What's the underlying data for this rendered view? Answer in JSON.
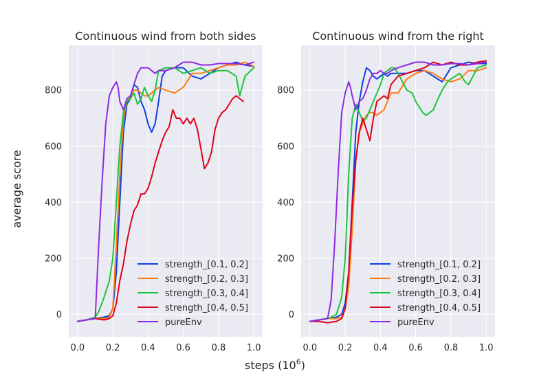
{
  "ylabel": "average score",
  "xlabel_base": "steps (10",
  "xlabel_exp": "6",
  "xlabel_close": ")",
  "colors": {
    "strength_[0.1, 0.2]": "#0a3fe8",
    "strength_[0.2, 0.3]": "#ff7b0e",
    "strength_[0.3, 0.4]": "#1cc43a",
    "strength_[0.4, 0.5]": "#e0001a",
    "pureEnv": "#8b2be2"
  },
  "chart_data": [
    {
      "type": "line",
      "title": "Continuous wind from both sides",
      "xlim": [
        -0.05,
        1.05
      ],
      "ylim": [
        -80,
        960
      ],
      "xticks": [
        0.0,
        0.2,
        0.4,
        0.6,
        0.8,
        1.0
      ],
      "xtick_labels": [
        "0.0",
        "0.2",
        "0.4",
        "0.6",
        "0.8",
        "1.0"
      ],
      "yticks": [
        0,
        200,
        400,
        600,
        800
      ],
      "ytick_labels": [
        "0",
        "200",
        "400",
        "600",
        "800"
      ],
      "legend_loc": "lower-right",
      "series": [
        {
          "name": "strength_[0.1, 0.2]",
          "x": [
            0.0,
            0.05,
            0.1,
            0.15,
            0.18,
            0.2,
            0.22,
            0.24,
            0.26,
            0.28,
            0.3,
            0.32,
            0.34,
            0.36,
            0.38,
            0.4,
            0.42,
            0.44,
            0.46,
            0.48,
            0.5,
            0.55,
            0.6,
            0.65,
            0.7,
            0.75,
            0.8,
            0.85,
            0.9,
            0.95,
            1.0
          ],
          "y": [
            -25,
            -20,
            -15,
            -10,
            -5,
            20,
            150,
            400,
            650,
            750,
            770,
            820,
            810,
            760,
            730,
            680,
            650,
            680,
            760,
            850,
            870,
            880,
            880,
            850,
            840,
            860,
            880,
            890,
            900,
            890,
            885
          ]
        },
        {
          "name": "strength_[0.2, 0.3]",
          "x": [
            0.0,
            0.05,
            0.1,
            0.15,
            0.18,
            0.2,
            0.22,
            0.24,
            0.26,
            0.28,
            0.3,
            0.32,
            0.34,
            0.36,
            0.38,
            0.4,
            0.42,
            0.44,
            0.46,
            0.5,
            0.55,
            0.6,
            0.65,
            0.7,
            0.75,
            0.8,
            0.85,
            0.9,
            0.95,
            1.0
          ],
          "y": [
            -25,
            -20,
            -15,
            -15,
            -10,
            20,
            250,
            500,
            700,
            760,
            780,
            800,
            800,
            790,
            780,
            780,
            790,
            800,
            810,
            800,
            790,
            810,
            860,
            860,
            870,
            880,
            890,
            890,
            900,
            885
          ]
        },
        {
          "name": "strength_[0.3, 0.4]",
          "x": [
            0.0,
            0.05,
            0.1,
            0.12,
            0.15,
            0.18,
            0.2,
            0.22,
            0.24,
            0.26,
            0.28,
            0.3,
            0.32,
            0.34,
            0.36,
            0.38,
            0.4,
            0.42,
            0.44,
            0.46,
            0.5,
            0.55,
            0.6,
            0.65,
            0.7,
            0.75,
            0.8,
            0.85,
            0.9,
            0.92,
            0.95,
            1.0
          ],
          "y": [
            -25,
            -20,
            -10,
            10,
            60,
            120,
            200,
            400,
            600,
            720,
            760,
            770,
            790,
            750,
            770,
            810,
            780,
            760,
            800,
            870,
            880,
            880,
            860,
            870,
            880,
            860,
            870,
            870,
            850,
            780,
            850,
            880
          ]
        },
        {
          "name": "strength_[0.4, 0.5]",
          "x": [
            0.0,
            0.05,
            0.1,
            0.15,
            0.18,
            0.2,
            0.22,
            0.24,
            0.26,
            0.28,
            0.3,
            0.32,
            0.34,
            0.36,
            0.38,
            0.4,
            0.42,
            0.44,
            0.46,
            0.48,
            0.5,
            0.52,
            0.54,
            0.56,
            0.58,
            0.6,
            0.62,
            0.64,
            0.66,
            0.68,
            0.7,
            0.72,
            0.74,
            0.76,
            0.78,
            0.8,
            0.82,
            0.84,
            0.86,
            0.88,
            0.9,
            0.92,
            0.94
          ],
          "y": [
            -25,
            -20,
            -15,
            -20,
            -15,
            -5,
            40,
            120,
            180,
            260,
            320,
            370,
            390,
            430,
            430,
            450,
            490,
            540,
            580,
            620,
            650,
            670,
            730,
            700,
            700,
            680,
            700,
            680,
            700,
            660,
            590,
            520,
            540,
            580,
            660,
            700,
            720,
            730,
            750,
            770,
            780,
            770,
            760
          ]
        },
        {
          "name": "pureEnv",
          "x": [
            0.0,
            0.05,
            0.1,
            0.12,
            0.14,
            0.16,
            0.18,
            0.2,
            0.22,
            0.23,
            0.24,
            0.26,
            0.28,
            0.3,
            0.32,
            0.34,
            0.36,
            0.38,
            0.4,
            0.42,
            0.44,
            0.46,
            0.5,
            0.55,
            0.6,
            0.65,
            0.7,
            0.75,
            0.8,
            0.85,
            0.9,
            0.95,
            1.0
          ],
          "y": [
            -25,
            -20,
            -15,
            250,
            480,
            680,
            780,
            810,
            830,
            810,
            760,
            730,
            770,
            780,
            820,
            860,
            880,
            880,
            880,
            870,
            860,
            870,
            870,
            880,
            900,
            900,
            890,
            890,
            895,
            895,
            895,
            890,
            900
          ]
        }
      ]
    },
    {
      "type": "line",
      "title": "Continuous wind from the right",
      "xlim": [
        -0.05,
        1.05
      ],
      "ylim": [
        -80,
        960
      ],
      "xticks": [
        0.0,
        0.2,
        0.4,
        0.6,
        0.8,
        1.0
      ],
      "xtick_labels": [
        "0.0",
        "0.2",
        "0.4",
        "0.6",
        "0.8",
        "1.0"
      ],
      "yticks": [
        0,
        200,
        400,
        600,
        800
      ],
      "ytick_labels": [
        "0",
        "200",
        "400",
        "600",
        "800"
      ],
      "legend_loc": "lower-right",
      "series": [
        {
          "name": "strength_[0.1, 0.2]",
          "x": [
            0.0,
            0.05,
            0.1,
            0.15,
            0.18,
            0.2,
            0.22,
            0.24,
            0.26,
            0.28,
            0.3,
            0.32,
            0.34,
            0.36,
            0.38,
            0.4,
            0.42,
            0.44,
            0.46,
            0.5,
            0.55,
            0.6,
            0.65,
            0.7,
            0.75,
            0.8,
            0.85,
            0.9,
            0.95,
            1.0
          ],
          "y": [
            -25,
            -20,
            -15,
            -10,
            0,
            40,
            150,
            400,
            650,
            760,
            830,
            880,
            870,
            850,
            840,
            850,
            860,
            850,
            860,
            860,
            860,
            870,
            870,
            850,
            830,
            880,
            890,
            900,
            895,
            895
          ]
        },
        {
          "name": "strength_[0.2, 0.3]",
          "x": [
            0.0,
            0.05,
            0.1,
            0.15,
            0.18,
            0.2,
            0.22,
            0.24,
            0.26,
            0.28,
            0.3,
            0.32,
            0.34,
            0.36,
            0.38,
            0.4,
            0.42,
            0.44,
            0.46,
            0.5,
            0.55,
            0.6,
            0.65,
            0.7,
            0.75,
            0.8,
            0.85,
            0.9,
            0.95,
            1.0
          ],
          "y": [
            -25,
            -20,
            -15,
            -15,
            -10,
            20,
            100,
            300,
            550,
            650,
            680,
            710,
            720,
            720,
            710,
            720,
            730,
            760,
            790,
            790,
            840,
            860,
            870,
            860,
            840,
            830,
            840,
            870,
            870,
            880
          ]
        },
        {
          "name": "strength_[0.3, 0.4]",
          "x": [
            0.0,
            0.05,
            0.1,
            0.12,
            0.15,
            0.18,
            0.2,
            0.22,
            0.24,
            0.26,
            0.28,
            0.3,
            0.32,
            0.34,
            0.36,
            0.38,
            0.4,
            0.42,
            0.44,
            0.46,
            0.48,
            0.5,
            0.55,
            0.58,
            0.6,
            0.62,
            0.64,
            0.66,
            0.68,
            0.7,
            0.72,
            0.75,
            0.78,
            0.8,
            0.85,
            0.88,
            0.9,
            0.95,
            1.0
          ],
          "y": [
            -25,
            -20,
            -15,
            -10,
            0,
            60,
            200,
            500,
            700,
            750,
            720,
            690,
            700,
            730,
            760,
            790,
            820,
            860,
            870,
            880,
            880,
            860,
            800,
            790,
            760,
            740,
            720,
            710,
            720,
            730,
            760,
            800,
            830,
            840,
            860,
            830,
            820,
            880,
            890
          ]
        },
        {
          "name": "strength_[0.4, 0.5]",
          "x": [
            0.0,
            0.05,
            0.1,
            0.15,
            0.18,
            0.2,
            0.22,
            0.24,
            0.26,
            0.28,
            0.3,
            0.32,
            0.34,
            0.36,
            0.38,
            0.4,
            0.42,
            0.44,
            0.46,
            0.5,
            0.55,
            0.6,
            0.65,
            0.7,
            0.75,
            0.8,
            0.85,
            0.9,
            0.95,
            1.0
          ],
          "y": [
            -25,
            -25,
            -30,
            -25,
            -15,
            20,
            150,
            380,
            550,
            650,
            700,
            660,
            620,
            700,
            760,
            770,
            780,
            770,
            820,
            850,
            860,
            870,
            880,
            900,
            890,
            900,
            890,
            890,
            900,
            905
          ]
        },
        {
          "name": "pureEnv",
          "x": [
            0.0,
            0.05,
            0.1,
            0.12,
            0.14,
            0.16,
            0.18,
            0.2,
            0.22,
            0.23,
            0.24,
            0.26,
            0.28,
            0.3,
            0.32,
            0.34,
            0.36,
            0.38,
            0.4,
            0.42,
            0.44,
            0.46,
            0.5,
            0.55,
            0.6,
            0.65,
            0.7,
            0.75,
            0.8,
            0.85,
            0.9,
            0.95,
            1.0
          ],
          "y": [
            -25,
            -20,
            -15,
            50,
            250,
            500,
            720,
            790,
            830,
            810,
            780,
            730,
            760,
            770,
            800,
            840,
            860,
            860,
            870,
            860,
            860,
            870,
            880,
            890,
            900,
            900,
            890,
            890,
            895,
            895,
            890,
            895,
            900
          ]
        }
      ]
    }
  ]
}
